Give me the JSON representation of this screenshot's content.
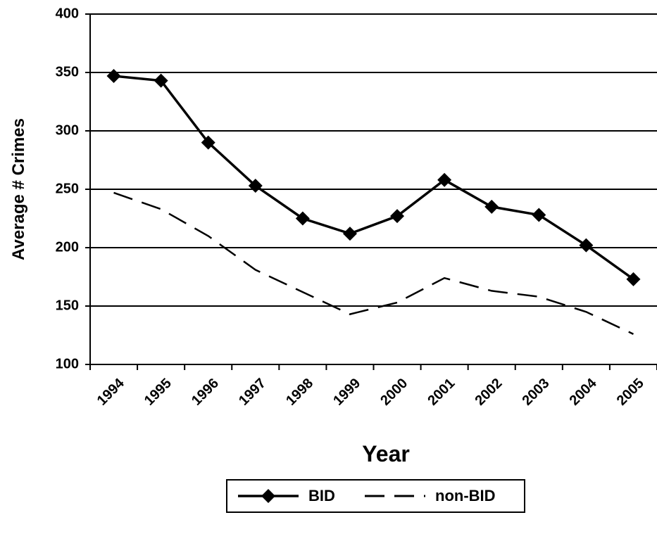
{
  "chart_data": {
    "type": "line",
    "x_label": "Year",
    "y_label": "Average # Crimes",
    "categories": [
      "1994",
      "1995",
      "1996",
      "1997",
      "1998",
      "1999",
      "2000",
      "2001",
      "2002",
      "2003",
      "2004",
      "2005"
    ],
    "series": [
      {
        "name": "BID",
        "color": "#000000",
        "marker": "diamond",
        "dashed": false,
        "values": [
          347,
          343,
          290,
          253,
          225,
          212,
          227,
          258,
          235,
          228,
          202,
          173
        ]
      },
      {
        "name": "non-BID",
        "color": "#000000",
        "marker": "none",
        "dashed": true,
        "values": [
          247,
          233,
          210,
          181,
          162,
          143,
          153,
          174,
          163,
          158,
          145,
          126
        ]
      }
    ],
    "ylim": [
      100,
      400
    ],
    "yticks": [
      100,
      150,
      200,
      250,
      300,
      350,
      400
    ],
    "grid": true,
    "legend": "bottom"
  }
}
